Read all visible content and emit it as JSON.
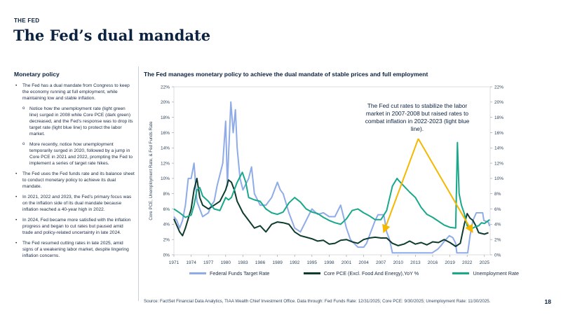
{
  "header": {
    "section_tag": "THE FED",
    "title": "The Fed’s dual mandate"
  },
  "sidebar": {
    "heading": "Monetary policy",
    "bullets": [
      {
        "text": "The Fed has a dual mandate from Congress to keep the economy running at full employment, while maintaining low and stable inflation.",
        "subs": [
          "Notice how the unemployment rate (light green line) surged in 2008 while Core PCE (dark green) decreased, and the Fed’s response was to drop its target rate (light blue line) to protect the labor market.",
          "More recently, notice how unemployment temporarily surged in 2020, followed by a jump in Core PCE in 2021 and 2022, prompting the Fed to implement a series of target rate hikes."
        ]
      },
      {
        "text": "The Fed uses the Fed funds rate and its balance sheet to conduct monetary policy to achieve its dual mandate.",
        "subs": []
      },
      {
        "text": "In 2021, 2022 and 2023, the Fed’s primary focus was on the inflation side of its dual mandate because inflation reached a 40-year high in 2022.",
        "subs": []
      },
      {
        "text": "In 2024, Fed became more satisfied with the inflation progress and began to cut rates but paused amid trade and policy-related uncertainty in late 2024.",
        "subs": []
      },
      {
        "text": "The Fed resumed cutting rates in late 2025, amid signs of a weakening labor market, despite lingering inflation concerns.",
        "subs": []
      }
    ]
  },
  "annotation": "The Fed cut rates to stabilize the labor market in 2007-2008 but raised rates to combat inflation in 2022-2023 (light blue line).",
  "footer": {
    "source": "Source: FactSet Financial Data Analytics, TIAA Wealth Chief Investment Office. Data through: Fed Funds Rate: 12/31/2025; Core PCE: 9/30/2025; Unemployment Rate: 11/30/2025.",
    "page_number": "18"
  },
  "colors": {
    "fed_funds": "#8fabe8",
    "core_pce": "#0d3b2e",
    "unemployment": "#1aa88b",
    "arrow": "#f5b800"
  },
  "chart_data": {
    "type": "line",
    "title": "The Fed manages monetary policy to achieve the dual mandate of stable prices and full employment",
    "ylabel": "Core PCE, Unemployment Rate, & Fed Funds Rate",
    "xlim": [
      1971,
      2026
    ],
    "ylim": [
      0,
      22
    ],
    "y_ticks": [
      "0%",
      "2%",
      "4%",
      "6%",
      "8%",
      "10%",
      "12%",
      "14%",
      "16%",
      "18%",
      "20%",
      "22%"
    ],
    "x_ticks": [
      "1971",
      "1974",
      "1977",
      "1980",
      "1983",
      "1986",
      "1989",
      "1992",
      "1995",
      "1998",
      "2001",
      "2004",
      "2007",
      "2010",
      "2013",
      "2016",
      "2019",
      "2022",
      "2025"
    ],
    "legend_position": "bottom",
    "series": [
      {
        "name": "Federal Funds Target Rate",
        "color_key": "fed_funds",
        "points": [
          [
            1971,
            5.0
          ],
          [
            1971.5,
            4.5
          ],
          [
            1972,
            3.5
          ],
          [
            1972.5,
            4.5
          ],
          [
            1973,
            6.5
          ],
          [
            1973.5,
            10.0
          ],
          [
            1974,
            10.0
          ],
          [
            1974.5,
            12.0
          ],
          [
            1975,
            7.0
          ],
          [
            1975.5,
            6.0
          ],
          [
            1976,
            5.0
          ],
          [
            1977,
            5.5
          ],
          [
            1977.5,
            6.5
          ],
          [
            1978,
            7.0
          ],
          [
            1978.5,
            9.0
          ],
          [
            1979,
            10.5
          ],
          [
            1979.5,
            12.0
          ],
          [
            1980,
            17.5
          ],
          [
            1980.3,
            9.0
          ],
          [
            1980.5,
            13.0
          ],
          [
            1980.9,
            20.0
          ],
          [
            1981.3,
            16.0
          ],
          [
            1981.7,
            19.0
          ],
          [
            1982,
            14.0
          ],
          [
            1982.5,
            10.0
          ],
          [
            1983,
            8.5
          ],
          [
            1984,
            10.0
          ],
          [
            1984.5,
            11.5
          ],
          [
            1985,
            8.0
          ],
          [
            1986,
            6.5
          ],
          [
            1987,
            6.5
          ],
          [
            1988,
            7.5
          ],
          [
            1989,
            9.5
          ],
          [
            1989.5,
            8.5
          ],
          [
            1990,
            8.0
          ],
          [
            1991,
            5.5
          ],
          [
            1992,
            3.5
          ],
          [
            1993,
            3.0
          ],
          [
            1994,
            4.5
          ],
          [
            1995,
            6.0
          ],
          [
            1996,
            5.3
          ],
          [
            1997,
            5.5
          ],
          [
            1998,
            5.0
          ],
          [
            1999,
            5.0
          ],
          [
            2000,
            6.5
          ],
          [
            2001,
            3.5
          ],
          [
            2001.7,
            2.0
          ],
          [
            2002,
            1.75
          ],
          [
            2003,
            1.0
          ],
          [
            2004,
            1.0
          ],
          [
            2004.5,
            1.5
          ],
          [
            2005,
            2.5
          ],
          [
            2006,
            4.5
          ],
          [
            2006.5,
            5.25
          ],
          [
            2007.5,
            5.25
          ],
          [
            2008,
            3.0
          ],
          [
            2008.5,
            2.0
          ],
          [
            2009,
            0.25
          ],
          [
            2015.9,
            0.25
          ],
          [
            2016.9,
            0.75
          ],
          [
            2017.5,
            1.25
          ],
          [
            2018,
            1.75
          ],
          [
            2018.9,
            2.5
          ],
          [
            2019.5,
            2.25
          ],
          [
            2020,
            1.5
          ],
          [
            2020.2,
            0.25
          ],
          [
            2022.1,
            0.25
          ],
          [
            2022.5,
            2.5
          ],
          [
            2023,
            4.5
          ],
          [
            2023.6,
            5.5
          ],
          [
            2024.7,
            5.5
          ],
          [
            2024.9,
            4.5
          ],
          [
            2025.7,
            4.25
          ],
          [
            2025.9,
            3.75
          ]
        ]
      },
      {
        "name": "Core PCE (Excl. Food And Energy),YoY %",
        "color_key": "core_pce",
        "points": [
          [
            1971,
            4.7
          ],
          [
            1972,
            3.0
          ],
          [
            1972.5,
            2.5
          ],
          [
            1973,
            3.5
          ],
          [
            1974,
            6.0
          ],
          [
            1974.5,
            8.5
          ],
          [
            1975,
            10.0
          ],
          [
            1975.5,
            7.5
          ],
          [
            1976,
            6.5
          ],
          [
            1977,
            6.0
          ],
          [
            1978,
            6.5
          ],
          [
            1979,
            7.0
          ],
          [
            1980,
            8.5
          ],
          [
            1980.5,
            9.8
          ],
          [
            1981,
            9.5
          ],
          [
            1981.5,
            8.5
          ],
          [
            1982,
            7.0
          ],
          [
            1983,
            5.5
          ],
          [
            1984,
            4.5
          ],
          [
            1985,
            3.5
          ],
          [
            1986,
            3.8
          ],
          [
            1987,
            3.0
          ],
          [
            1988,
            4.0
          ],
          [
            1989,
            4.3
          ],
          [
            1990,
            4.2
          ],
          [
            1991,
            4.0
          ],
          [
            1992,
            3.0
          ],
          [
            1993,
            2.5
          ],
          [
            1994,
            2.3
          ],
          [
            1995,
            2.1
          ],
          [
            1996,
            1.8
          ],
          [
            1997,
            1.9
          ],
          [
            1998,
            1.4
          ],
          [
            1999,
            1.5
          ],
          [
            2000,
            1.9
          ],
          [
            2001,
            2.0
          ],
          [
            2002,
            1.7
          ],
          [
            2003,
            1.5
          ],
          [
            2004,
            2.0
          ],
          [
            2005,
            2.2
          ],
          [
            2006,
            2.3
          ],
          [
            2007,
            2.2
          ],
          [
            2008,
            2.2
          ],
          [
            2009,
            1.5
          ],
          [
            2010,
            1.2
          ],
          [
            2011,
            1.4
          ],
          [
            2012,
            1.8
          ],
          [
            2013,
            1.4
          ],
          [
            2014,
            1.6
          ],
          [
            2015,
            1.3
          ],
          [
            2016,
            1.7
          ],
          [
            2017,
            1.6
          ],
          [
            2018,
            2.0
          ],
          [
            2019,
            1.6
          ],
          [
            2020,
            1.1
          ],
          [
            2020.8,
            1.5
          ],
          [
            2021.5,
            4.0
          ],
          [
            2022,
            5.4
          ],
          [
            2022.5,
            4.8
          ],
          [
            2023,
            4.5
          ],
          [
            2023.5,
            3.8
          ],
          [
            2024,
            2.9
          ],
          [
            2024.5,
            2.8
          ],
          [
            2025,
            2.7
          ],
          [
            2025.7,
            2.9
          ]
        ]
      },
      {
        "name": "Unemployment Rate",
        "color_key": "unemployment",
        "points": [
          [
            1971,
            6.0
          ],
          [
            1972,
            5.5
          ],
          [
            1973,
            4.9
          ],
          [
            1974,
            5.2
          ],
          [
            1974.5,
            6.5
          ],
          [
            1975,
            8.5
          ],
          [
            1975.5,
            8.8
          ],
          [
            1976,
            7.7
          ],
          [
            1977,
            7.0
          ],
          [
            1978,
            6.0
          ],
          [
            1979,
            5.8
          ],
          [
            1980,
            7.5
          ],
          [
            1980.5,
            7.2
          ],
          [
            1981,
            7.5
          ],
          [
            1982,
            9.5
          ],
          [
            1982.9,
            10.8
          ],
          [
            1983.5,
            9.5
          ],
          [
            1984,
            7.5
          ],
          [
            1985,
            7.2
          ],
          [
            1986,
            7.0
          ],
          [
            1987,
            6.0
          ],
          [
            1988,
            5.5
          ],
          [
            1989,
            5.3
          ],
          [
            1990,
            5.6
          ],
          [
            1991,
            6.8
          ],
          [
            1992,
            7.5
          ],
          [
            1993,
            6.9
          ],
          [
            1994,
            6.0
          ],
          [
            1995,
            5.6
          ],
          [
            1996,
            5.4
          ],
          [
            1997,
            4.9
          ],
          [
            1998,
            4.5
          ],
          [
            1999,
            4.2
          ],
          [
            2000,
            4.0
          ],
          [
            2001,
            4.7
          ],
          [
            2002,
            5.8
          ],
          [
            2003,
            6.0
          ],
          [
            2004,
            5.5
          ],
          [
            2005,
            5.1
          ],
          [
            2006,
            4.6
          ],
          [
            2007,
            4.6
          ],
          [
            2008,
            5.8
          ],
          [
            2009,
            9.0
          ],
          [
            2009.8,
            10.0
          ],
          [
            2010,
            9.8
          ],
          [
            2011,
            9.0
          ],
          [
            2012,
            8.2
          ],
          [
            2013,
            7.5
          ],
          [
            2014,
            6.2
          ],
          [
            2015,
            5.3
          ],
          [
            2016,
            4.9
          ],
          [
            2017,
            4.4
          ],
          [
            2018,
            3.9
          ],
          [
            2019,
            3.6
          ],
          [
            2020,
            3.5
          ],
          [
            2020.3,
            14.7
          ],
          [
            2020.6,
            8.0
          ],
          [
            2021,
            6.5
          ],
          [
            2021.5,
            5.4
          ],
          [
            2022,
            3.8
          ],
          [
            2022.5,
            3.6
          ],
          [
            2023,
            3.5
          ],
          [
            2023.5,
            3.7
          ],
          [
            2024,
            3.8
          ],
          [
            2024.5,
            4.2
          ],
          [
            2025,
            4.1
          ],
          [
            2025.9,
            4.6
          ]
        ]
      }
    ],
    "annotation_arrows": [
      [
        2013.5,
        15.2,
        2007.5,
        3.0
      ],
      [
        2013.5,
        15.2,
        2022.9,
        3.0
      ]
    ]
  }
}
